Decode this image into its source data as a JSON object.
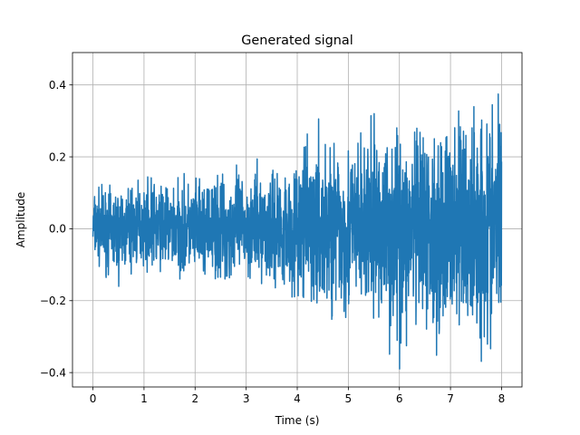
{
  "chart_data": {
    "type": "line",
    "title": "Generated signal",
    "xlabel": "Time (s)",
    "ylabel": "Amplitude",
    "xlim": [
      -0.4,
      8.4
    ],
    "ylim": [
      -0.44,
      0.49
    ],
    "xticks": [
      0,
      1,
      2,
      3,
      4,
      5,
      6,
      7,
      8
    ],
    "xtick_labels": [
      "0",
      "1",
      "2",
      "3",
      "4",
      "5",
      "6",
      "7",
      "8"
    ],
    "yticks": [
      -0.4,
      -0.2,
      0.0,
      0.2,
      0.4
    ],
    "ytick_labels": [
      "−0.4",
      "−0.2",
      "0.0",
      "0.2",
      "0.4"
    ],
    "grid": true,
    "legend": "none",
    "series": [
      {
        "color": "#1f77b4",
        "envelope": {
          "x": [
            0,
            0.5,
            1,
            1.5,
            2,
            2.5,
            3,
            3.5,
            4,
            4.5,
            5,
            5.5,
            6,
            6.5,
            7,
            7.5,
            8
          ],
          "max": [
            0.13,
            0.13,
            0.16,
            0.16,
            0.15,
            0.17,
            0.19,
            0.2,
            0.23,
            0.32,
            0.27,
            0.32,
            0.33,
            0.3,
            0.37,
            0.4,
            0.45
          ],
          "min": [
            -0.1,
            -0.17,
            -0.12,
            -0.14,
            -0.17,
            -0.18,
            -0.16,
            -0.18,
            -0.22,
            -0.32,
            -0.3,
            -0.3,
            -0.39,
            -0.36,
            -0.35,
            -0.38,
            -0.39
          ]
        }
      }
    ]
  }
}
